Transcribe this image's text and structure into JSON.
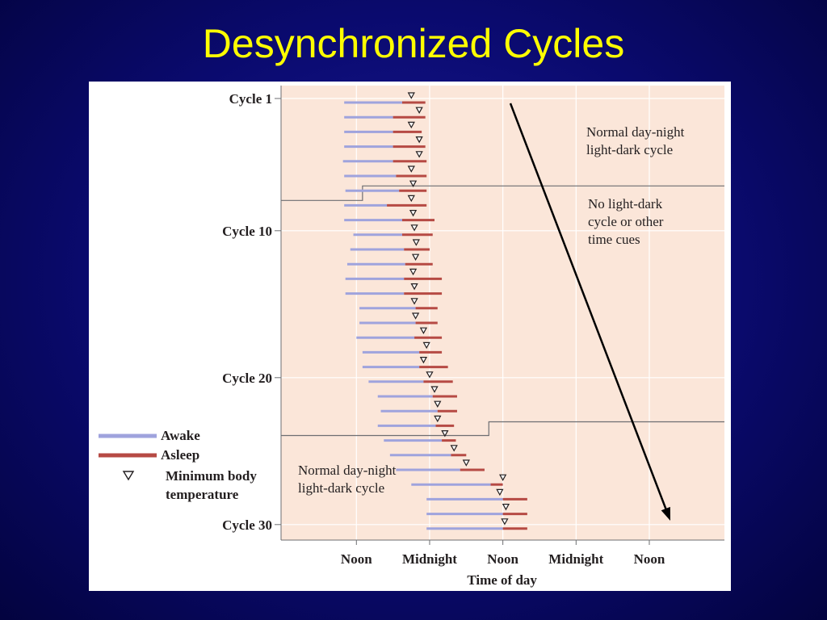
{
  "slide": {
    "title": "Desynchronized Cycles"
  },
  "chart_data": {
    "type": "gantt",
    "xlabel": "Time of day",
    "x_ticks": [
      "Noon",
      "Midnight",
      "Noon",
      "Midnight",
      "Noon"
    ],
    "x_tick_hours": [
      0,
      12,
      24,
      36,
      48
    ],
    "y_ticks": [
      {
        "label": "Cycle 1",
        "cycle": 1
      },
      {
        "label": "Cycle 10",
        "cycle": 10
      },
      {
        "label": "Cycle 20",
        "cycle": 20
      },
      {
        "label": "Cycle 30",
        "cycle": 30
      }
    ],
    "units": "hours after first noon",
    "colors": {
      "awake": "#9fa3dd",
      "asleep": "#b64a44",
      "background": "#fbe6d9",
      "arrow": "#000000"
    },
    "legend": [
      {
        "label": "Awake",
        "kind": "awake"
      },
      {
        "label": "Asleep",
        "kind": "asleep"
      },
      {
        "label": "Minimum body",
        "label2": "temperature",
        "kind": "min-temp"
      }
    ],
    "annotations": {
      "normal_top": [
        "Normal day-night",
        "light-dark cycle"
      ],
      "no_cues": [
        "No light-dark",
        "cycle or other",
        "time cues"
      ],
      "normal_bottom": [
        "Normal day-night",
        "light-dark cycle"
      ]
    },
    "phases": [
      {
        "name": "normal",
        "cycles": [
          1,
          7
        ]
      },
      {
        "name": "no-cues",
        "cycles": [
          8,
          23
        ]
      },
      {
        "name": "normal",
        "cycles": [
          24,
          30
        ]
      }
    ],
    "cycles": [
      {
        "cycle": 1,
        "awake_start": -2.0,
        "sleep_start": 7.5,
        "sleep_end": 11.3,
        "min_temp": 9.0
      },
      {
        "cycle": 2,
        "awake_start": -2.0,
        "sleep_start": 6.0,
        "sleep_end": 11.3,
        "min_temp": 10.3
      },
      {
        "cycle": 3,
        "awake_start": -2.0,
        "sleep_start": 6.0,
        "sleep_end": 10.7,
        "min_temp": 9.0
      },
      {
        "cycle": 4,
        "awake_start": -2.0,
        "sleep_start": 6.0,
        "sleep_end": 11.3,
        "min_temp": 10.3
      },
      {
        "cycle": 5,
        "awake_start": -2.2,
        "sleep_start": 6.0,
        "sleep_end": 11.5,
        "min_temp": 10.3
      },
      {
        "cycle": 6,
        "awake_start": -2.0,
        "sleep_start": 6.5,
        "sleep_end": 11.5,
        "min_temp": 9.0
      },
      {
        "cycle": 7,
        "awake_start": -1.8,
        "sleep_start": 7.0,
        "sleep_end": 11.5,
        "min_temp": 9.3
      },
      {
        "cycle": 8,
        "awake_start": -2.0,
        "sleep_start": 5.0,
        "sleep_end": 11.5,
        "min_temp": 9.0
      },
      {
        "cycle": 9,
        "awake_start": -2.0,
        "sleep_start": 7.5,
        "sleep_end": 12.8,
        "min_temp": 9.3
      },
      {
        "cycle": 10,
        "awake_start": -0.5,
        "sleep_start": 7.5,
        "sleep_end": 12.5,
        "min_temp": 9.5
      },
      {
        "cycle": 11,
        "awake_start": -1.0,
        "sleep_start": 7.8,
        "sleep_end": 12.0,
        "min_temp": 9.8
      },
      {
        "cycle": 12,
        "awake_start": -1.5,
        "sleep_start": 8.0,
        "sleep_end": 12.5,
        "min_temp": 9.7
      },
      {
        "cycle": 13,
        "awake_start": -1.8,
        "sleep_start": 7.8,
        "sleep_end": 14.0,
        "min_temp": 9.3
      },
      {
        "cycle": 14,
        "awake_start": -1.8,
        "sleep_start": 7.8,
        "sleep_end": 14.0,
        "min_temp": 9.5
      },
      {
        "cycle": 15,
        "awake_start": 0.5,
        "sleep_start": 9.7,
        "sleep_end": 13.3,
        "min_temp": 9.5
      },
      {
        "cycle": 16,
        "awake_start": 0.5,
        "sleep_start": 9.7,
        "sleep_end": 13.3,
        "min_temp": 9.7
      },
      {
        "cycle": 17,
        "awake_start": 0.0,
        "sleep_start": 9.5,
        "sleep_end": 14.0,
        "min_temp": 11.0
      },
      {
        "cycle": 18,
        "awake_start": 1.0,
        "sleep_start": 10.3,
        "sleep_end": 14.0,
        "min_temp": 11.5
      },
      {
        "cycle": 19,
        "awake_start": 1.0,
        "sleep_start": 10.3,
        "sleep_end": 15.0,
        "min_temp": 11.0
      },
      {
        "cycle": 20,
        "awake_start": 2.0,
        "sleep_start": 11.0,
        "sleep_end": 15.8,
        "min_temp": 12.0
      },
      {
        "cycle": 21,
        "awake_start": 3.5,
        "sleep_start": 12.5,
        "sleep_end": 16.5,
        "min_temp": 12.8
      },
      {
        "cycle": 22,
        "awake_start": 4.0,
        "sleep_start": 13.3,
        "sleep_end": 16.5,
        "min_temp": 13.3
      },
      {
        "cycle": 23,
        "awake_start": 3.5,
        "sleep_start": 13.0,
        "sleep_end": 16.0,
        "min_temp": 13.3
      },
      {
        "cycle": 24,
        "awake_start": 4.5,
        "sleep_start": 14.0,
        "sleep_end": 16.3,
        "min_temp": 14.5
      },
      {
        "cycle": 25,
        "awake_start": 5.5,
        "sleep_start": 15.5,
        "sleep_end": 18.0,
        "min_temp": 16.0
      },
      {
        "cycle": 26,
        "awake_start": 6.5,
        "sleep_start": 17.0,
        "sleep_end": 21.0,
        "min_temp": 18.0
      },
      {
        "cycle": 27,
        "awake_start": 9.0,
        "sleep_start": 22.0,
        "sleep_end": 24.0,
        "min_temp": 24.0
      },
      {
        "cycle": 28,
        "awake_start": 11.5,
        "sleep_start": 24.0,
        "sleep_end": 28.0,
        "min_temp": 23.5
      },
      {
        "cycle": 29,
        "awake_start": 11.5,
        "sleep_start": 24.0,
        "sleep_end": 28.0,
        "min_temp": 24.5
      },
      {
        "cycle": 30,
        "awake_start": 11.5,
        "sleep_start": 24.0,
        "sleep_end": 28.0,
        "min_temp": 24.3
      }
    ]
  }
}
